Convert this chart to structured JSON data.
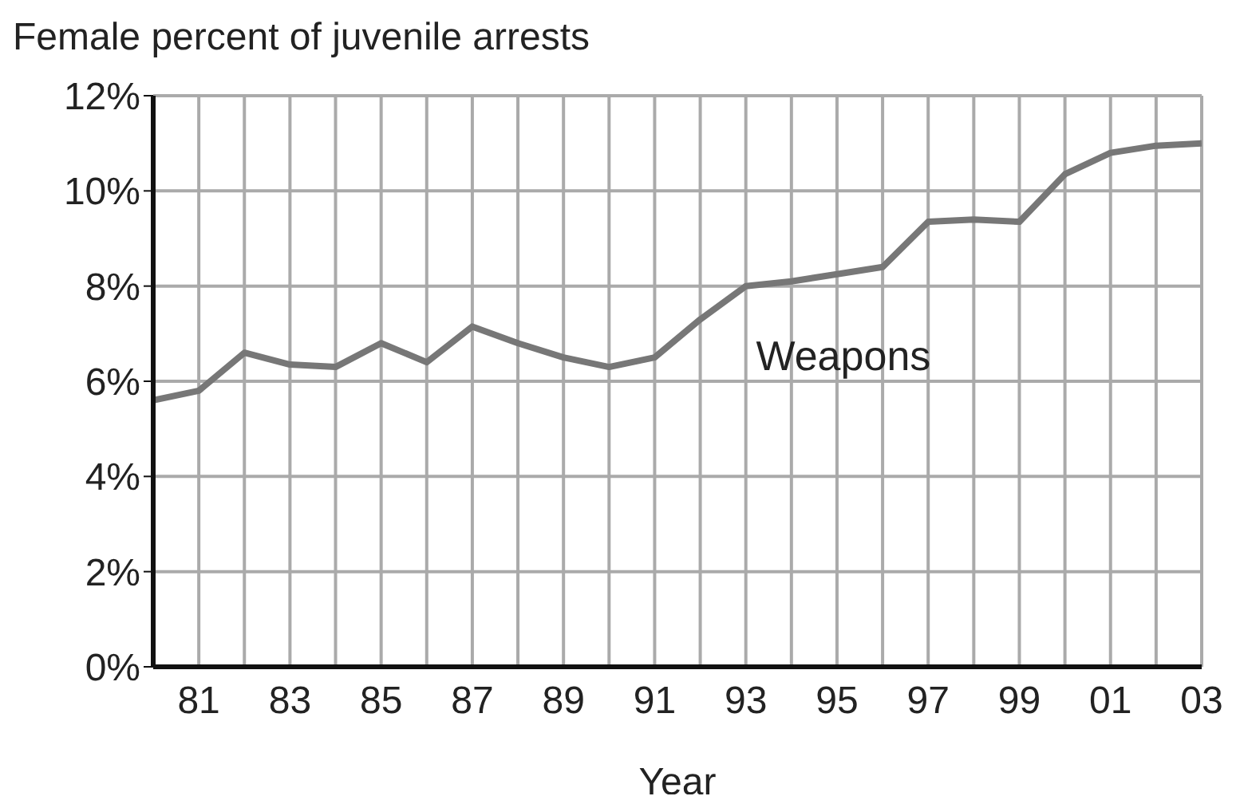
{
  "chart_data": {
    "type": "line",
    "title": "Female percent of juvenile arrests",
    "xlabel": "Year",
    "x": [
      1980,
      1981,
      1982,
      1983,
      1984,
      1985,
      1986,
      1987,
      1988,
      1989,
      1990,
      1991,
      1992,
      1993,
      1994,
      1995,
      1996,
      1997,
      1998,
      1999,
      2000,
      2001,
      2002,
      2003
    ],
    "series": [
      {
        "name": "Weapons",
        "color": "#777777",
        "values": [
          5.6,
          5.8,
          6.6,
          6.35,
          6.3,
          6.8,
          6.4,
          7.15,
          6.8,
          6.5,
          6.3,
          6.5,
          7.3,
          8.0,
          8.1,
          8.25,
          8.4,
          9.35,
          9.4,
          9.35,
          10.35,
          10.8,
          10.95,
          11.0
        ]
      }
    ],
    "xlim": [
      1980,
      2003
    ],
    "xticks": [
      {
        "value": 1980,
        "label": null
      },
      {
        "value": 1981,
        "label": "81"
      },
      {
        "value": 1982,
        "label": null
      },
      {
        "value": 1983,
        "label": "83"
      },
      {
        "value": 1984,
        "label": null
      },
      {
        "value": 1985,
        "label": "85"
      },
      {
        "value": 1986,
        "label": null
      },
      {
        "value": 1987,
        "label": "87"
      },
      {
        "value": 1988,
        "label": null
      },
      {
        "value": 1989,
        "label": "89"
      },
      {
        "value": 1990,
        "label": null
      },
      {
        "value": 1991,
        "label": "91"
      },
      {
        "value": 1992,
        "label": null
      },
      {
        "value": 1993,
        "label": "93"
      },
      {
        "value": 1994,
        "label": null
      },
      {
        "value": 1995,
        "label": "95"
      },
      {
        "value": 1996,
        "label": null
      },
      {
        "value": 1997,
        "label": "97"
      },
      {
        "value": 1998,
        "label": null
      },
      {
        "value": 1999,
        "label": "99"
      },
      {
        "value": 2000,
        "label": null
      },
      {
        "value": 2001,
        "label": "01"
      },
      {
        "value": 2002,
        "label": null
      },
      {
        "value": 2003,
        "label": "03"
      }
    ],
    "ylim": [
      0,
      12
    ],
    "yticks": [
      {
        "value": 0,
        "label": "0%"
      },
      {
        "value": 2,
        "label": "2%"
      },
      {
        "value": 4,
        "label": "4%"
      },
      {
        "value": 6,
        "label": "6%"
      },
      {
        "value": 8,
        "label": "8%"
      },
      {
        "value": 10,
        "label": "10%"
      },
      {
        "value": 12,
        "label": "12%"
      }
    ],
    "grid": true,
    "legend": false,
    "marker": "none",
    "line_style": "solid"
  }
}
